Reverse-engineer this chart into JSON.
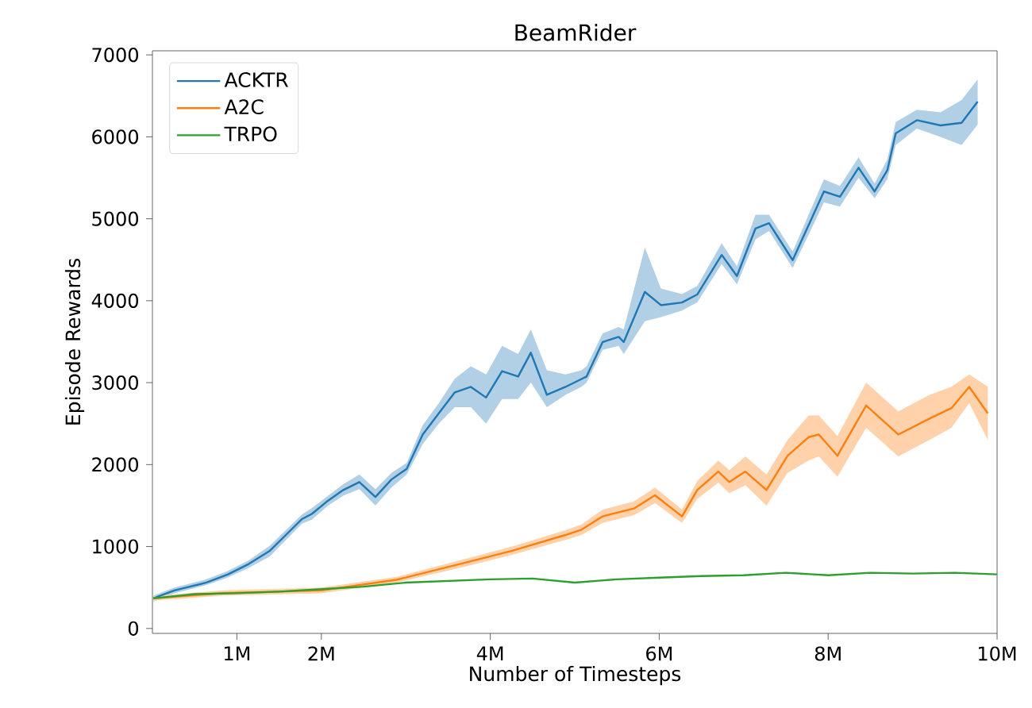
{
  "chart_data": {
    "type": "line",
    "title": "BeamRider",
    "xlabel": "Number of Timesteps",
    "ylabel": "Episode Rewards",
    "xlim": [
      0,
      10
    ],
    "ylim": [
      -60,
      7050
    ],
    "xticks": [
      {
        "value": 1,
        "label": "1M"
      },
      {
        "value": 2,
        "label": "2M"
      },
      {
        "value": 4,
        "label": "4M"
      },
      {
        "value": 6,
        "label": "6M"
      },
      {
        "value": 8,
        "label": "8M"
      },
      {
        "value": 10,
        "label": "10M"
      }
    ],
    "yticks": [
      0,
      1000,
      2000,
      3000,
      4000,
      5000,
      6000,
      7000
    ],
    "legend": "top left",
    "grid": false,
    "marker": "none",
    "line_style": "solid",
    "series": [
      {
        "name": "ACKTR",
        "color": "#1f77b4",
        "x": [
          0.01,
          0.26,
          0.64,
          0.89,
          1.14,
          1.39,
          1.58,
          1.77,
          1.89,
          2.08,
          2.26,
          2.45,
          2.64,
          2.83,
          3.01,
          3.2,
          3.39,
          3.58,
          3.77,
          3.95,
          4.14,
          4.33,
          4.48,
          4.67,
          4.89,
          5.08,
          5.14,
          5.33,
          5.52,
          5.58,
          5.83,
          6.02,
          6.27,
          6.45,
          6.74,
          6.92,
          7.14,
          7.3,
          7.58,
          7.95,
          8.14,
          8.36,
          8.55,
          8.7,
          8.8,
          9.05,
          9.33,
          9.58,
          9.77
        ],
        "values": [
          367,
          464,
          561,
          658,
          787,
          948,
          1141,
          1335,
          1400,
          1561,
          1690,
          1787,
          1605,
          1818,
          1948,
          2367,
          2625,
          2882,
          2948,
          2818,
          3141,
          3075,
          3366,
          2851,
          2948,
          3045,
          3075,
          3495,
          3559,
          3495,
          4108,
          3946,
          3978,
          4076,
          4559,
          4301,
          4882,
          4946,
          4495,
          5333,
          5269,
          5623,
          5333,
          5590,
          6042,
          6203,
          6139,
          6171,
          6429
        ],
        "lower": [
          330,
          430,
          530,
          620,
          740,
          880,
          1080,
          1280,
          1330,
          1500,
          1620,
          1700,
          1500,
          1720,
          1880,
          2250,
          2500,
          2700,
          2700,
          2500,
          2800,
          2800,
          3000,
          2700,
          2850,
          2950,
          3000,
          3400,
          3450,
          3350,
          3750,
          3800,
          3880,
          3980,
          4450,
          4200,
          4750,
          4850,
          4400,
          5200,
          5150,
          5500,
          5250,
          5480,
          5900,
          6100,
          6000,
          5900,
          6150
        ],
        "upper": [
          400,
          500,
          600,
          700,
          830,
          1010,
          1200,
          1390,
          1470,
          1620,
          1760,
          1880,
          1700,
          1900,
          2020,
          2480,
          2750,
          3050,
          3200,
          3100,
          3450,
          3350,
          3650,
          3150,
          3100,
          3150,
          3200,
          3600,
          3680,
          3650,
          4650,
          4150,
          4080,
          4180,
          4700,
          4420,
          5050,
          5050,
          4600,
          5480,
          5400,
          5750,
          5430,
          5720,
          6180,
          6330,
          6300,
          6450,
          6700
        ]
      },
      {
        "name": "A2C",
        "color": "#ff7f0e",
        "x": [
          0.01,
          0.83,
          2.0,
          2.89,
          3.64,
          4.26,
          4.89,
          5.08,
          5.33,
          5.7,
          5.95,
          6.27,
          6.45,
          6.7,
          6.83,
          7.02,
          7.27,
          7.52,
          7.77,
          7.89,
          8.11,
          8.45,
          8.83,
          9.2,
          9.46,
          9.67,
          9.89
        ],
        "values": [
          367,
          432,
          464,
          594,
          787,
          948,
          1141,
          1206,
          1368,
          1464,
          1625,
          1368,
          1690,
          1915,
          1787,
          1915,
          1690,
          2108,
          2335,
          2367,
          2108,
          2721,
          2367,
          2561,
          2689,
          2948,
          2625
        ],
        "lower": [
          340,
          400,
          430,
          560,
          740,
          900,
          1080,
          1140,
          1290,
          1380,
          1530,
          1290,
          1580,
          1780,
          1650,
          1750,
          1500,
          1900,
          2050,
          2100,
          1850,
          2450,
          2100,
          2300,
          2450,
          2750,
          2300
        ],
        "upper": [
          395,
          465,
          500,
          630,
          830,
          1000,
          1200,
          1270,
          1450,
          1550,
          1720,
          1450,
          1800,
          2050,
          1930,
          2100,
          1880,
          2300,
          2600,
          2600,
          2350,
          3000,
          2650,
          2850,
          2950,
          3100,
          2950
        ]
      },
      {
        "name": "TRPO",
        "color": "#2ca02c",
        "x": [
          0.01,
          0.5,
          1.0,
          1.5,
          2.0,
          2.5,
          3.0,
          3.5,
          4.0,
          4.5,
          5.0,
          5.5,
          6.0,
          6.5,
          7.0,
          7.5,
          8.0,
          8.5,
          9.0,
          9.5,
          10.0
        ],
        "values": [
          367,
          420,
          430,
          450,
          480,
          510,
          560,
          580,
          600,
          610,
          560,
          600,
          620,
          640,
          650,
          680,
          650,
          680,
          670,
          680,
          660
        ]
      }
    ]
  }
}
